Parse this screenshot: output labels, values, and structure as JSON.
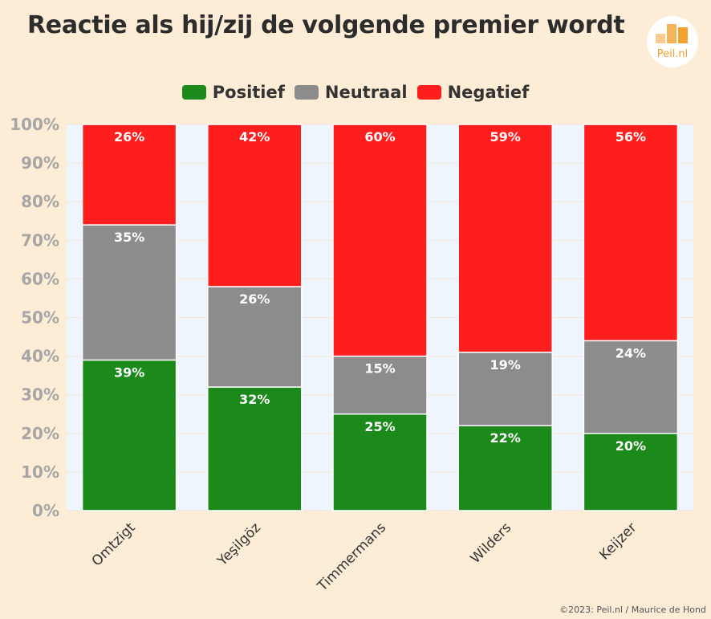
{
  "title": "Reactie als hij/zij de volgende premier wordt",
  "logo": {
    "text": "Peil.nl"
  },
  "credit": "©2023: Peil.nl / Maurice de Hond",
  "colors": {
    "background": "#fdecd6",
    "plot_background": "#eef5fd",
    "positief": "#1b8a1b",
    "neutraal": "#8c8c8c",
    "negatief": "#ff1e1e",
    "axis_text": "#a6a6a6"
  },
  "chart_data": {
    "type": "bar",
    "stacked": true,
    "categories": [
      "Omtzigt",
      "Yeşilgöz",
      "Timmermans",
      "Wilders",
      "Keijzer"
    ],
    "series": [
      {
        "name": "Positief",
        "values": [
          39,
          32,
          25,
          22,
          20
        ],
        "labels": [
          "39%",
          "32%",
          "25%",
          "22%",
          "20%"
        ]
      },
      {
        "name": "Neutraal",
        "values": [
          35,
          26,
          15,
          19,
          24
        ],
        "labels": [
          "35%",
          "26%",
          "15%",
          "19%",
          "24%"
        ]
      },
      {
        "name": "Negatief",
        "values": [
          26,
          42,
          60,
          59,
          56
        ],
        "labels": [
          "26%",
          "42%",
          "60%",
          "59%",
          "56%"
        ]
      }
    ],
    "ylim": [
      0,
      100
    ],
    "yticks": [
      "0%",
      "10%",
      "20%",
      "30%",
      "40%",
      "50%",
      "60%",
      "70%",
      "80%",
      "90%",
      "100%"
    ],
    "legend_position": "top",
    "grid": true
  }
}
